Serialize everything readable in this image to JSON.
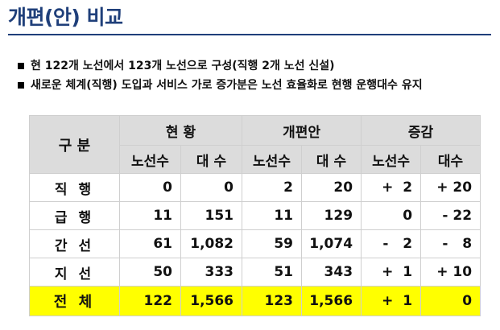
{
  "title": "개편(안) 비교",
  "bullets": [
    "현 122개 노선에서 123개 노선으로 구성(직행 2개 노선 신설)",
    "새로운 체계(직행) 도입과 서비스 가로 증가분은 노선 효율화로 현행 운행대수 유지"
  ],
  "table": {
    "corner_label": "구 분",
    "groups": [
      "현 황",
      "개편안",
      "증감"
    ],
    "subheaders": [
      "노선수",
      "대 수",
      "노선수",
      "대 수",
      "노선수",
      "대수"
    ],
    "rows": [
      {
        "label": "직 행",
        "cells": [
          "0",
          "0",
          "2",
          "20",
          "+  2",
          "+ 20"
        ]
      },
      {
        "label": "급 행",
        "cells": [
          "11",
          "151",
          "11",
          "129",
          "0",
          "- 22"
        ]
      },
      {
        "label": "간 선",
        "cells": [
          "61",
          "1,082",
          "59",
          "1,074",
          "-   2",
          "-   8"
        ]
      },
      {
        "label": "지 선",
        "cells": [
          "50",
          "333",
          "51",
          "343",
          "+  1",
          "+ 10"
        ]
      }
    ],
    "total": {
      "label": "전 체",
      "cells": [
        "122",
        "1,566",
        "123",
        "1,566",
        "+  1",
        "0"
      ]
    },
    "highlight_color": "#ffff00",
    "header_color": "#dcdcdc"
  }
}
